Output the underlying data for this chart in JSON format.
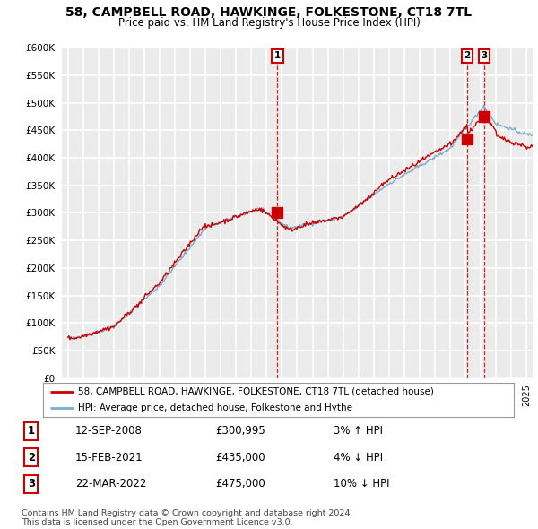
{
  "title": "58, CAMPBELL ROAD, HAWKINGE, FOLKESTONE, CT18 7TL",
  "subtitle": "Price paid vs. HM Land Registry's House Price Index (HPI)",
  "ylim": [
    0,
    600000
  ],
  "yticks": [
    0,
    50000,
    100000,
    150000,
    200000,
    250000,
    300000,
    350000,
    400000,
    450000,
    500000,
    550000,
    600000
  ],
  "background_color": "#ffffff",
  "plot_bg_color": "#ebebeb",
  "grid_color": "#ffffff",
  "red_line_color": "#cc0000",
  "blue_line_color": "#7aadce",
  "marker_color": "#cc0000",
  "transactions": [
    {
      "label": "1",
      "date": "12-SEP-2008",
      "price": 300995,
      "hpi_pct": "3% ↑ HPI",
      "x": 2008.7
    },
    {
      "label": "2",
      "date": "15-FEB-2021",
      "price": 435000,
      "hpi_pct": "4% ↓ HPI",
      "x": 2021.12
    },
    {
      "label": "3",
      "date": "22-MAR-2022",
      "price": 475000,
      "hpi_pct": "10% ↓ HPI",
      "x": 2022.22
    }
  ],
  "legend_entries": [
    "58, CAMPBELL ROAD, HAWKINGE, FOLKESTONE, CT18 7TL (detached house)",
    "HPI: Average price, detached house, Folkestone and Hythe"
  ],
  "table_data": [
    [
      "1",
      "12-SEP-2008",
      "£300,995",
      "3% ↑ HPI"
    ],
    [
      "2",
      "15-FEB-2021",
      "£435,000",
      "4% ↓ HPI"
    ],
    [
      "3",
      "22-MAR-2022",
      "£475,000",
      "10% ↓ HPI"
    ]
  ],
  "footer_lines": [
    "Contains HM Land Registry data © Crown copyright and database right 2024.",
    "This data is licensed under the Open Government Licence v3.0."
  ]
}
